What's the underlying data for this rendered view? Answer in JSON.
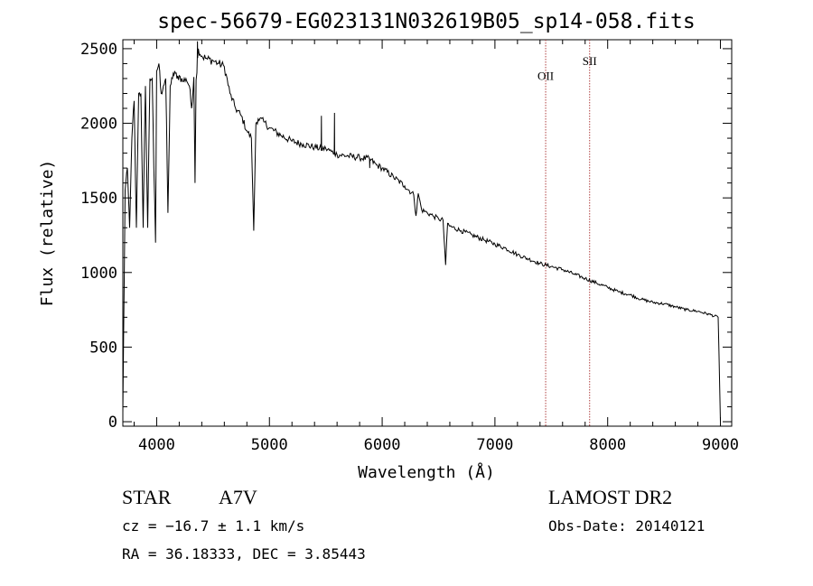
{
  "chart_data": {
    "type": "line",
    "title": "spec-56679-EG023131N032619B05_sp14-058.fits",
    "xlabel": "Wavelength (Å)",
    "ylabel": "Flux (relative)",
    "xlim": [
      3700,
      9100
    ],
    "ylim": [
      -30,
      2560
    ],
    "xticks": [
      4000,
      5000,
      6000,
      7000,
      8000,
      9000
    ],
    "yticks": [
      0,
      500,
      1000,
      1500,
      2000,
      2500
    ],
    "grid": false,
    "series": [
      {
        "color": "#000000",
        "x": [
          3700,
          3720,
          3740,
          3760,
          3780,
          3800,
          3820,
          3840,
          3860,
          3880,
          3900,
          3920,
          3940,
          3960,
          3975,
          3990,
          4000,
          4020,
          4040,
          4060,
          4080,
          4100,
          4120,
          4140,
          4160,
          4180,
          4200,
          4230,
          4260,
          4290,
          4310,
          4330,
          4340,
          4350,
          4370,
          4400,
          4450,
          4500,
          4550,
          4600,
          4650,
          4700,
          4750,
          4800,
          4840,
          4861,
          4880,
          4900,
          4950,
          5000,
          5100,
          5200,
          5300,
          5400,
          5460,
          5500,
          5550,
          5577,
          5600,
          5700,
          5800,
          5890,
          5950,
          6000,
          6100,
          6200,
          6280,
          6300,
          6320,
          6350,
          6400,
          6450,
          6500,
          6540,
          6563,
          6580,
          6600,
          6700,
          6800,
          6900,
          7000,
          7100,
          7200,
          7300,
          7400,
          7500,
          7600,
          7700,
          7800,
          7900,
          8000,
          8100,
          8200,
          8300,
          8400,
          8500,
          8600,
          8700,
          8800,
          8900,
          8980,
          9000
        ],
        "y": [
          60,
          1550,
          1700,
          1300,
          1900,
          2150,
          1300,
          2200,
          2200,
          1300,
          2250,
          1300,
          2300,
          2300,
          1700,
          1200,
          2350,
          2400,
          2200,
          2250,
          2300,
          1400,
          2250,
          2300,
          2350,
          2300,
          2320,
          2280,
          2300,
          2250,
          2100,
          2310,
          1600,
          2290,
          2500,
          2450,
          2430,
          2420,
          2400,
          2380,
          2200,
          2100,
          2050,
          1950,
          1900,
          1280,
          2000,
          2030,
          2010,
          1970,
          1920,
          1880,
          1860,
          1840,
          1830,
          1830,
          1810,
          1800,
          1790,
          1780,
          1770,
          1760,
          1720,
          1700,
          1640,
          1580,
          1520,
          1380,
          1530,
          1420,
          1400,
          1380,
          1360,
          1350,
          1050,
          1330,
          1310,
          1280,
          1250,
          1220,
          1190,
          1160,
          1120,
          1090,
          1060,
          1040,
          1020,
          990,
          960,
          930,
          900,
          870,
          850,
          820,
          800,
          790,
          770,
          750,
          740,
          720,
          700,
          0
        ]
      }
    ],
    "spikes": [
      {
        "x": 4362,
        "y": 2550
      },
      {
        "x": 5461,
        "y": 2050
      },
      {
        "x": 5577,
        "y": 2070
      },
      {
        "x": 5890,
        "y": 1700
      }
    ],
    "lines": [
      {
        "label": "OII",
        "x": 7450,
        "label_y": 2290,
        "color": "#b04040"
      },
      {
        "label": "SII",
        "x": 7840,
        "label_y": 2390,
        "color": "#b04040"
      }
    ]
  },
  "info": {
    "obj_class": "STAR",
    "subclass": "A7V",
    "survey": "LAMOST DR2",
    "cz": "cz = −16.7 ± 1.1 km/s",
    "obs_date": "Obs-Date: 20140121",
    "radec": "RA =  36.18333, DEC =   3.85443"
  }
}
